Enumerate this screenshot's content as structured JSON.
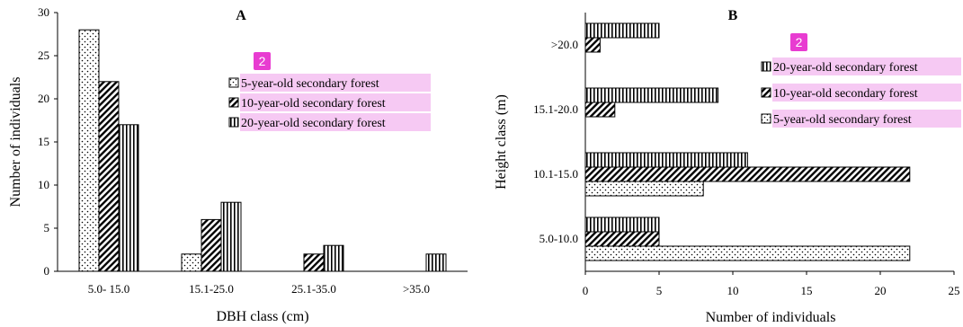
{
  "chart_data": [
    {
      "type": "bar",
      "panel": "A",
      "orientation": "vertical",
      "categories": [
        "5.0- 15.0",
        "15.1-25.0",
        "25.1-35.0",
        ">35.0"
      ],
      "series": [
        {
          "name": "5-year-old secondary forest",
          "values": [
            28,
            2,
            0,
            0
          ],
          "pattern": "dots"
        },
        {
          "name": "10-year-old secondary forest",
          "values": [
            22,
            6,
            2,
            0
          ],
          "pattern": "diagonal"
        },
        {
          "name": "20-year-old secondary forest",
          "values": [
            17,
            8,
            3,
            2
          ],
          "pattern": "vertical"
        }
      ],
      "xlabel": "DBH class (cm)",
      "ylabel": "Number of individuals",
      "ylim": [
        0,
        30
      ],
      "yticks": [
        "0",
        "5",
        "10",
        "15",
        "20",
        "25",
        "30"
      ],
      "legend_position": "right",
      "legend_badge": "2",
      "grid": false
    },
    {
      "type": "bar",
      "panel": "B",
      "orientation": "horizontal",
      "categories": [
        "5.0-10.0",
        "10.1-15.0",
        "15.1-20.0",
        ">20.0"
      ],
      "series": [
        {
          "name": "5-year-old secondary forest",
          "values": [
            22,
            8,
            0,
            0
          ],
          "pattern": "dots"
        },
        {
          "name": "10-year-old secondary forest",
          "values": [
            5,
            22,
            2,
            1
          ],
          "pattern": "diagonal"
        },
        {
          "name": "20-year-old secondary forest",
          "values": [
            5,
            11,
            9,
            5
          ],
          "pattern": "vertical"
        }
      ],
      "xlabel": "Number of individuals",
      "ylabel": "Height class (m)",
      "xlim": [
        0,
        25
      ],
      "xticks": [
        "0",
        "5",
        "10",
        "15",
        "20",
        "25"
      ],
      "legend_order": [
        "20-year-old secondary forest",
        "10-year-old secondary forest",
        "5-year-old secondary forest"
      ],
      "legend_position": "top-right",
      "legend_badge": "2",
      "grid": false
    }
  ],
  "colors": {
    "badge": "#e83cd1",
    "legend_highlight": "#f6c9f3",
    "bar_stroke": "#000000"
  }
}
